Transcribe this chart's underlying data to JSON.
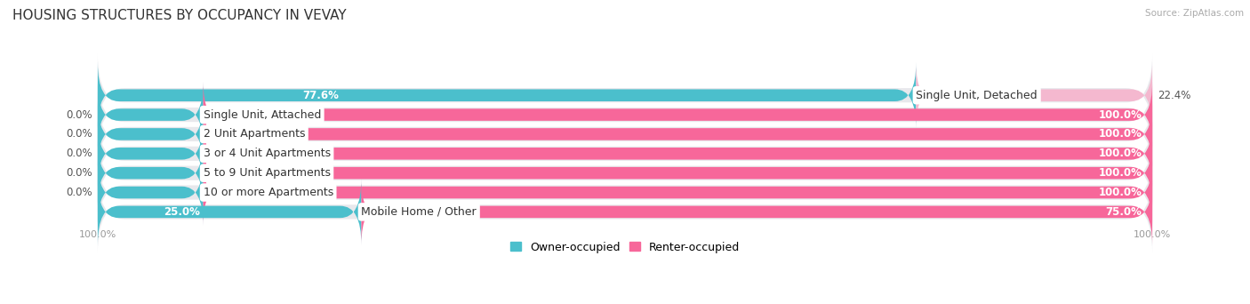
{
  "title": "HOUSING STRUCTURES BY OCCUPANCY IN VEVAY",
  "source": "Source: ZipAtlas.com",
  "categories": [
    "Single Unit, Detached",
    "Single Unit, Attached",
    "2 Unit Apartments",
    "3 or 4 Unit Apartments",
    "5 to 9 Unit Apartments",
    "10 or more Apartments",
    "Mobile Home / Other"
  ],
  "owner_pct": [
    77.6,
    0.0,
    0.0,
    0.0,
    0.0,
    0.0,
    25.0
  ],
  "renter_pct": [
    22.4,
    100.0,
    100.0,
    100.0,
    100.0,
    100.0,
    75.0
  ],
  "owner_color": "#4bbfcc",
  "renter_color_full": "#f7679a",
  "renter_color_light": "#f4b8cf",
  "row_bg_color": "#e8e8ec",
  "background_color": "#ffffff",
  "title_fontsize": 11,
  "label_fontsize": 9,
  "pct_fontsize": 8.5,
  "bar_height": 0.62,
  "legend_labels": [
    "Owner-occupied",
    "Renter-occupied"
  ],
  "owner_stub_pct": 10.0,
  "renter_full_threshold": 50.0
}
